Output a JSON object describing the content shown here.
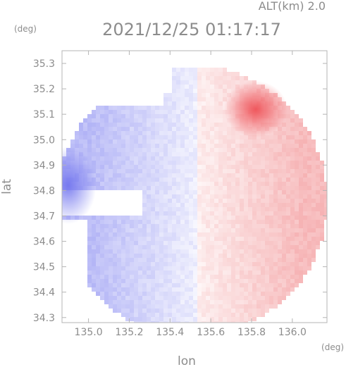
{
  "chart_data": {
    "type": "heatmap",
    "subtitle": "ALT(km) 2.0",
    "title": "2021/12/25 01:17:17",
    "xlabel": "lon",
    "ylabel": "lat",
    "x_unit": "(deg)",
    "y_unit": "(deg)",
    "xlim": [
      134.87,
      136.17
    ],
    "ylim": [
      34.28,
      35.35
    ],
    "x_ticks": [
      "135.0",
      "135.2",
      "135.4",
      "135.6",
      "135.8",
      "136.0"
    ],
    "y_ticks": [
      "35.3",
      "35.2",
      "35.1",
      "35.0",
      "34.9",
      "34.8",
      "34.7",
      "34.6",
      "34.5",
      "34.4",
      "34.3"
    ],
    "colors": {
      "negative": "#6f72ee",
      "positive": "#ee6f72",
      "zero": "#ffffff",
      "frame": "#b4b4b4"
    },
    "field": {
      "approach_center_lon": 135.53,
      "strong_blue_west_lon": 134.9,
      "strong_blue_west_lat": 34.82,
      "strong_red_north_lon": 135.82,
      "strong_red_north_lat": 35.12
    }
  }
}
